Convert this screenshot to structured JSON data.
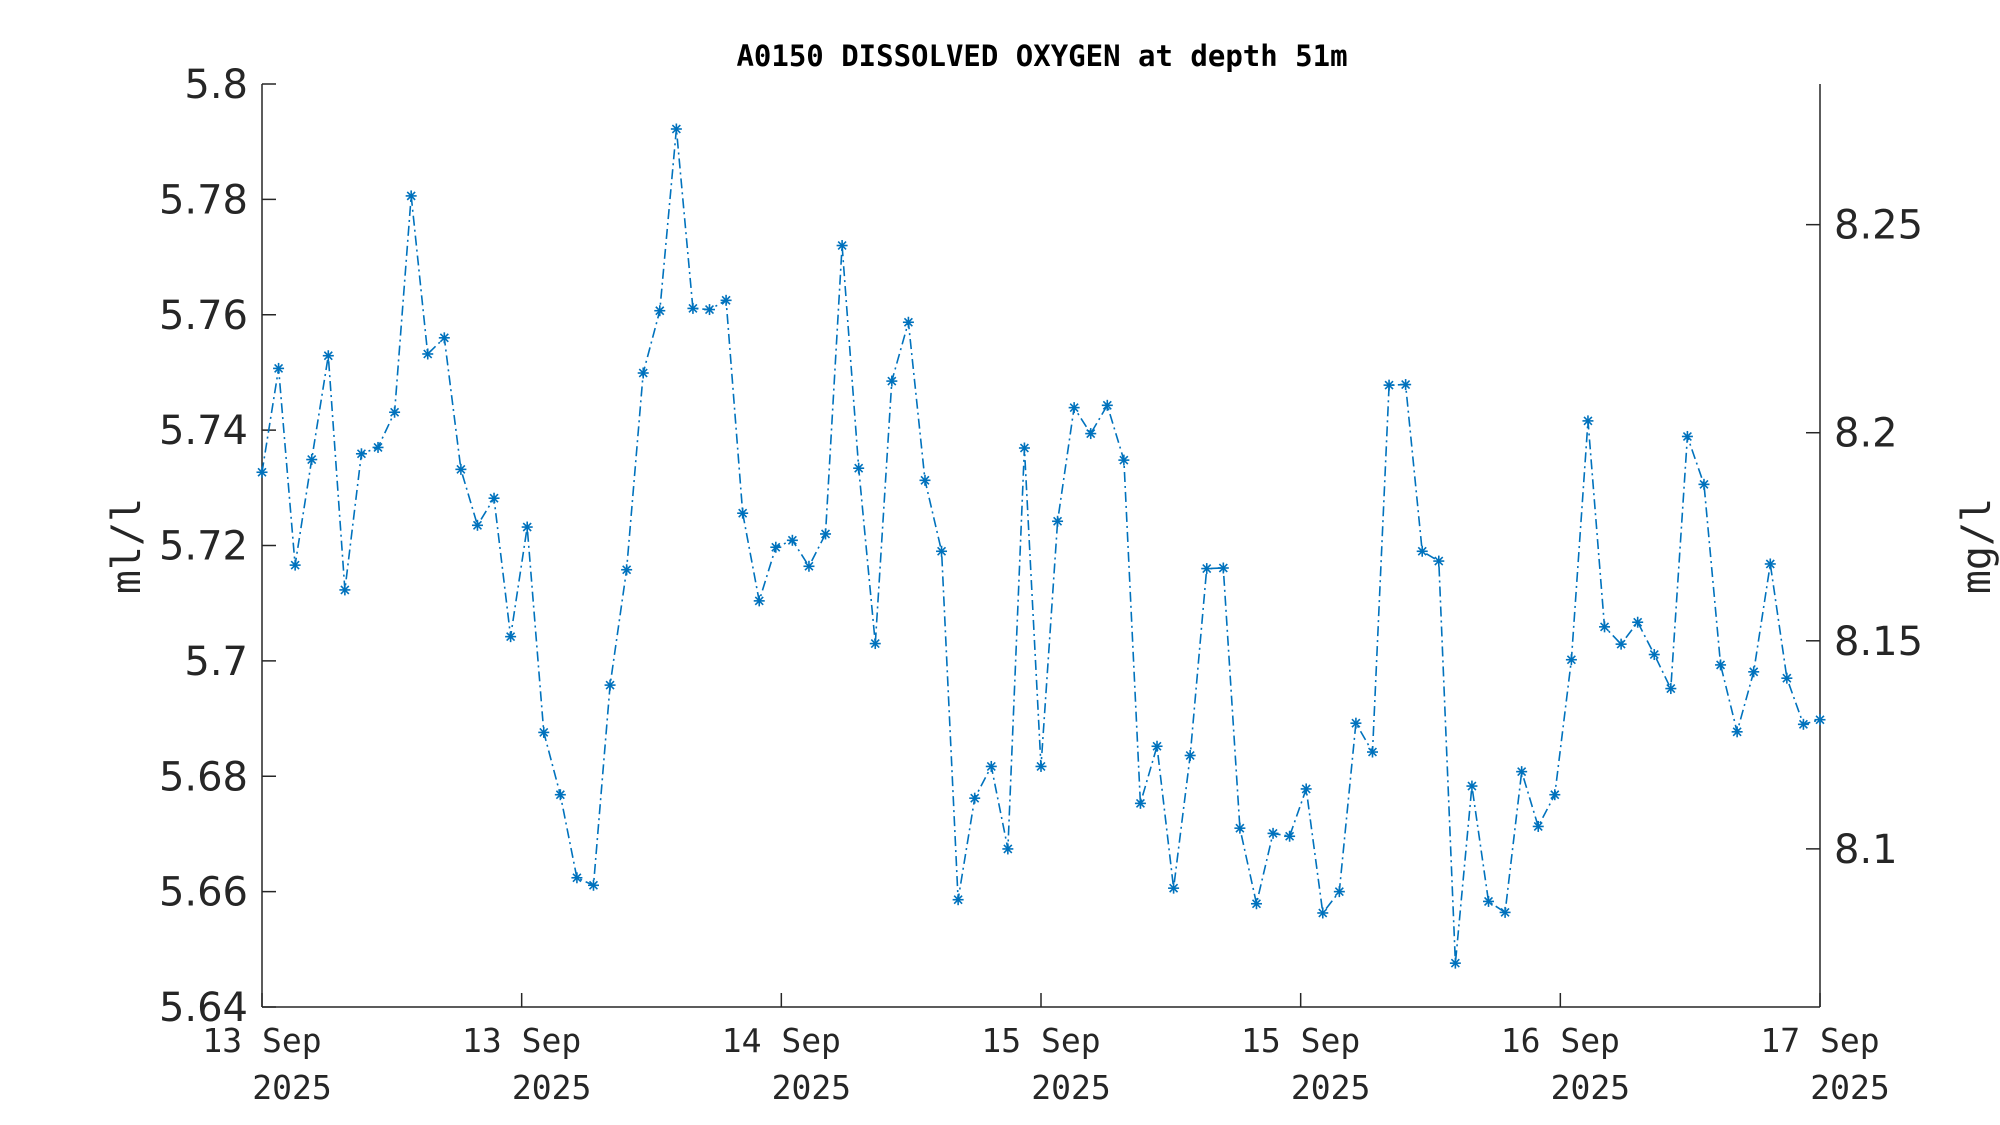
{
  "chart_data": {
    "type": "line",
    "title": "A0150 DISSOLVED OXYGEN at depth 51m",
    "ylabel": "ml/l",
    "y2label": "mg/l",
    "ylim": [
      5.64,
      5.8
    ],
    "y2lim": [
      8.062,
      8.2838
    ],
    "yticks": [
      5.64,
      5.66,
      5.68,
      5.7,
      5.72,
      5.74,
      5.76,
      5.78,
      5.8
    ],
    "ytick_labels": [
      "5.64",
      "5.66",
      "5.68",
      "5.7",
      "5.72",
      "5.74",
      "5.76",
      "5.78",
      "5.8"
    ],
    "y2ticks": [
      8.1,
      8.15,
      8.2,
      8.25
    ],
    "y2tick_labels": [
      "8.1",
      "8.15",
      "8.2",
      "8.25"
    ],
    "xticks": [
      {
        "line1": "13 Sep",
        "line2": "2025"
      },
      {
        "line1": "13 Sep",
        "line2": "2025"
      },
      {
        "line1": "14 Sep",
        "line2": "2025"
      },
      {
        "line1": "15 Sep",
        "line2": "2025"
      },
      {
        "line1": "15 Sep",
        "line2": "2025"
      },
      {
        "line1": "16 Sep",
        "line2": "2025"
      },
      {
        "line1": "17 Sep",
        "line2": "2025"
      }
    ],
    "grid": false,
    "line_style": "dash-dot",
    "marker": "asterisk",
    "color": "#0072BD",
    "series": [
      {
        "values": [
          5.7327,
          5.7507,
          5.7166,
          5.7349,
          5.7529,
          5.7123,
          5.7359,
          5.737,
          5.7431,
          5.7806,
          5.7532,
          5.756,
          5.7332,
          5.7235,
          5.7282,
          5.7042,
          5.7232,
          5.6876,
          5.6768,
          5.6624,
          5.6611,
          5.6958,
          5.7158,
          5.7499,
          5.7607,
          5.7922,
          5.7611,
          5.7609,
          5.7625,
          5.7256,
          5.7104,
          5.7197,
          5.7209,
          5.7164,
          5.722,
          5.772,
          5.7334,
          5.703,
          5.7485,
          5.7587,
          5.7313,
          5.719,
          5.6586,
          5.6762,
          5.6817,
          5.6674,
          5.7369,
          5.6817,
          5.7242,
          5.7439,
          5.7394,
          5.7443,
          5.7348,
          5.6753,
          5.6852,
          5.6606,
          5.6836,
          5.716,
          5.7161,
          5.671,
          5.6579,
          5.6701,
          5.6696,
          5.6778,
          5.6563,
          5.66,
          5.6892,
          5.6842,
          5.7478,
          5.7479,
          5.719,
          5.7173,
          5.6476,
          5.6783,
          5.6583,
          5.6564,
          5.6808,
          5.6713,
          5.6768,
          5.7002,
          5.7416,
          5.7059,
          5.7029,
          5.7067,
          5.7011,
          5.6952,
          5.7389,
          5.7306,
          5.6993,
          5.6877,
          5.6981,
          5.7168,
          5.697,
          5.689,
          5.6898
        ]
      }
    ]
  }
}
